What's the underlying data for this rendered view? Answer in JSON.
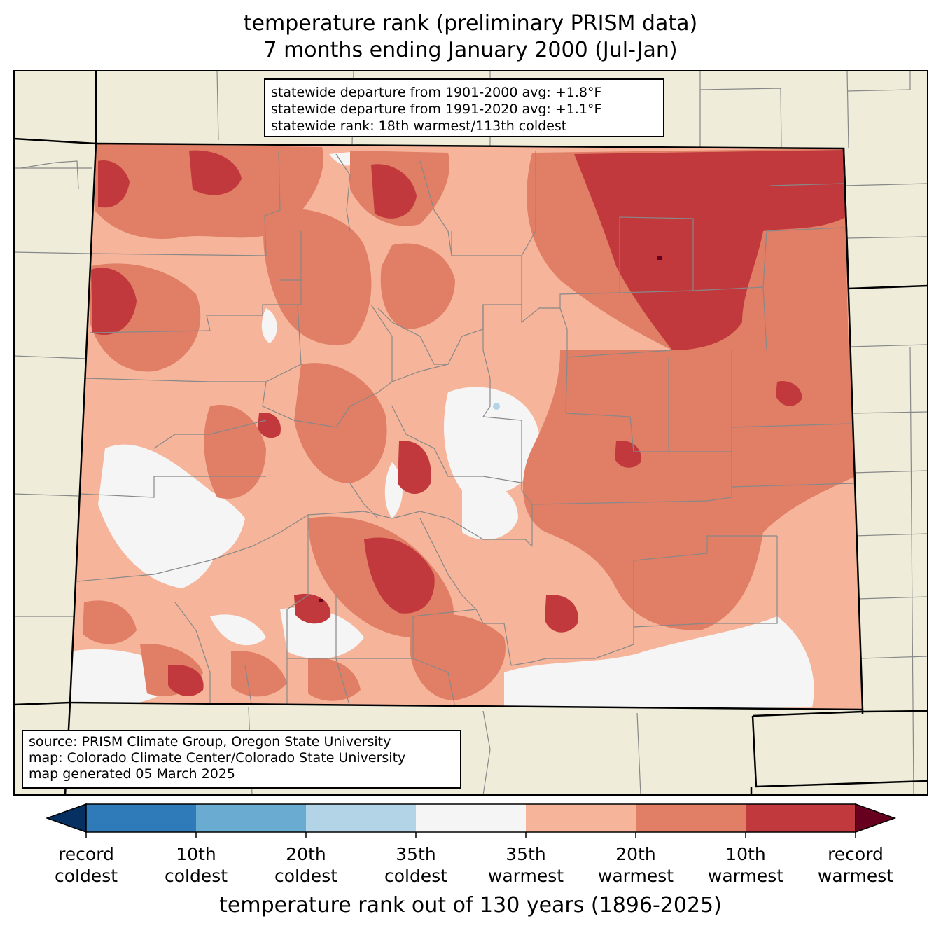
{
  "title": {
    "line1": "temperature rank (preliminary PRISM data)",
    "line2": "7 months ending January 2000 (Jul-Jan)"
  },
  "stats": {
    "line1": "statewide departure from 1901-2000 avg: +1.8°F",
    "line2": "statewide departure from 1991-2020 avg: +1.1°F",
    "line3": "statewide rank: 18th warmest/113th coldest"
  },
  "source": {
    "line1": "source: PRISM Climate Group, Oregon State University",
    "line2": "map: Colorado Climate Center/Colorado State University",
    "line3": "map generated 05 March 2025"
  },
  "colorbar": {
    "title": "temperature rank out of 130 years (1896-2025)",
    "labels": [
      [
        "record",
        "coldest"
      ],
      [
        "10th",
        "coldest"
      ],
      [
        "20th",
        "coldest"
      ],
      [
        "35th",
        "coldest"
      ],
      [
        "35th",
        "warmest"
      ],
      [
        "20th",
        "warmest"
      ],
      [
        "10th",
        "warmest"
      ],
      [
        "record",
        "warmest"
      ]
    ],
    "colors": {
      "record_coldest": "#053061",
      "coldest_10": "#2f7ab8",
      "coldest_20": "#6aabd2",
      "coldest_35": "#b2d4e6",
      "near_normal": "#f5f5f5",
      "warmest_35": "#f6b59a",
      "warmest_20": "#e07e66",
      "warmest_10": "#c1393d",
      "record_warmest": "#67001f"
    }
  },
  "map_colors": {
    "land_outside": "#efedda",
    "border": "#000000",
    "county_lines": "#888888"
  }
}
